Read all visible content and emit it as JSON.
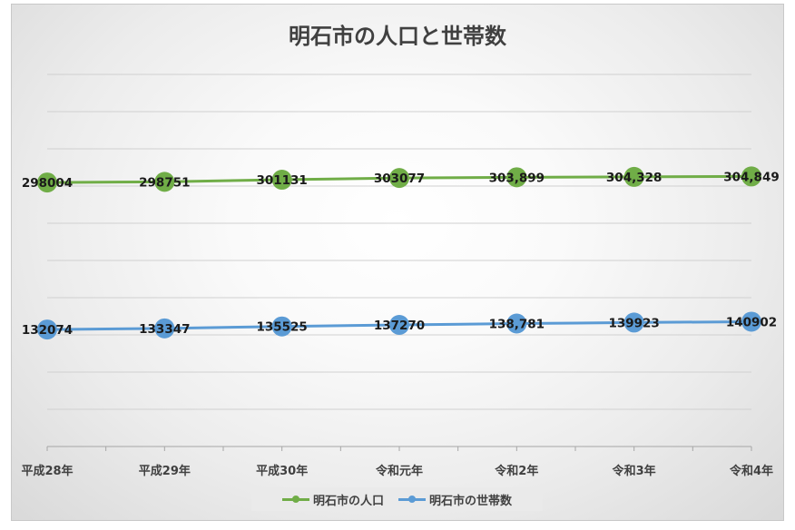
{
  "chart_data": {
    "type": "line",
    "title": "明石市の人口と世帯数",
    "categories": [
      "平成28年",
      "平成29年",
      "平成30年",
      "令和元年",
      "令和2年",
      "令和3年",
      "令和4年"
    ],
    "ylim": [
      0,
      420000
    ],
    "grid": true,
    "legend_position": "bottom",
    "series": [
      {
        "name": "明石市の人口",
        "color": "#70ad47",
        "values": [
          298004,
          298751,
          301131,
          303077,
          303899,
          304328,
          304849
        ],
        "labels": [
          "298004",
          "298751",
          "301131",
          "303077",
          "303,899",
          "304,328",
          "304,849"
        ]
      },
      {
        "name": "明石市の世帯数",
        "color": "#5b9bd5",
        "values": [
          132074,
          133347,
          135525,
          137270,
          138781,
          139923,
          140902
        ],
        "labels": [
          "132074",
          "133347",
          "135525",
          "137270",
          "138,781",
          "139923",
          "140902"
        ]
      }
    ]
  }
}
